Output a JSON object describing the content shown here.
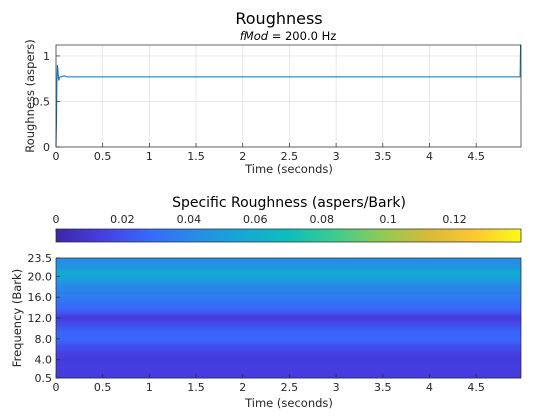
{
  "chart_data": [
    {
      "type": "line",
      "title": "Roughness",
      "subtitle_italic": "fMod",
      "subtitle_rest": " = 200.0 Hz",
      "xlabel": "Time (seconds)",
      "ylabel": "Roughness (aspers)",
      "xlim": [
        0,
        4.98
      ],
      "ylim": [
        0,
        1.12
      ],
      "xticks": [
        "0",
        "0.5",
        "1",
        "1.5",
        "2",
        "2.5",
        "3",
        "3.5",
        "4",
        "4.5"
      ],
      "yticks": [
        "0",
        "0.5",
        "1"
      ],
      "grid": true,
      "color": "#0072bd",
      "series": [
        {
          "x": [
            0,
            0.005,
            0.01,
            0.015,
            0.02,
            0.025,
            0.03,
            0.04,
            0.06,
            0.08,
            0.1,
            0.12,
            0.14,
            0.5,
            1,
            2,
            3,
            4,
            4.97,
            4.975,
            4.98
          ],
          "y": [
            0,
            0.25,
            0.72,
            0.9,
            0.86,
            0.76,
            0.73,
            0.77,
            0.77,
            0.78,
            0.78,
            0.77,
            0.77,
            0.77,
            0.77,
            0.77,
            0.77,
            0.77,
            0.77,
            1.12,
            1.12
          ]
        }
      ]
    },
    {
      "type": "heatmap",
      "title": "Specific Roughness (aspers/Bark)",
      "xlabel": "Time (seconds)",
      "ylabel": "Frequency (Bark)",
      "xlim": [
        0,
        4.98
      ],
      "ylim": [
        0.5,
        23.5
      ],
      "xticks": [
        "0",
        "0.5",
        "1",
        "1.5",
        "2",
        "2.5",
        "3",
        "3.5",
        "4",
        "4.5"
      ],
      "yticks": [
        "0.5",
        "4.0",
        "8.0",
        "12.0",
        "16.0",
        "20.0",
        "23.5"
      ],
      "colorbar": {
        "min": 0,
        "max": 0.14,
        "ticks": [
          "0",
          "0.02",
          "0.04",
          "0.06",
          "0.08",
          "0.1",
          "0.12"
        ],
        "colormap": "parula"
      },
      "bark_profile": {
        "bark": [
          0.5,
          1.0,
          2.0,
          3.0,
          4.0,
          5.0,
          6.0,
          7.0,
          8.0,
          9.0,
          10.0,
          11.0,
          12.0,
          12.5,
          13.0,
          14.0,
          15.0,
          16.0,
          17.0,
          18.0,
          19.0,
          20.0,
          20.5,
          21.0,
          21.5,
          22.0,
          23.0,
          23.5
        ],
        "value": [
          0.013,
          0.013,
          0.013,
          0.013,
          0.013,
          0.013,
          0.018,
          0.022,
          0.028,
          0.027,
          0.024,
          0.018,
          0.012,
          0.015,
          0.022,
          0.028,
          0.032,
          0.036,
          0.038,
          0.041,
          0.046,
          0.054,
          0.058,
          0.055,
          0.05,
          0.045,
          0.043,
          0.043
        ]
      }
    }
  ]
}
